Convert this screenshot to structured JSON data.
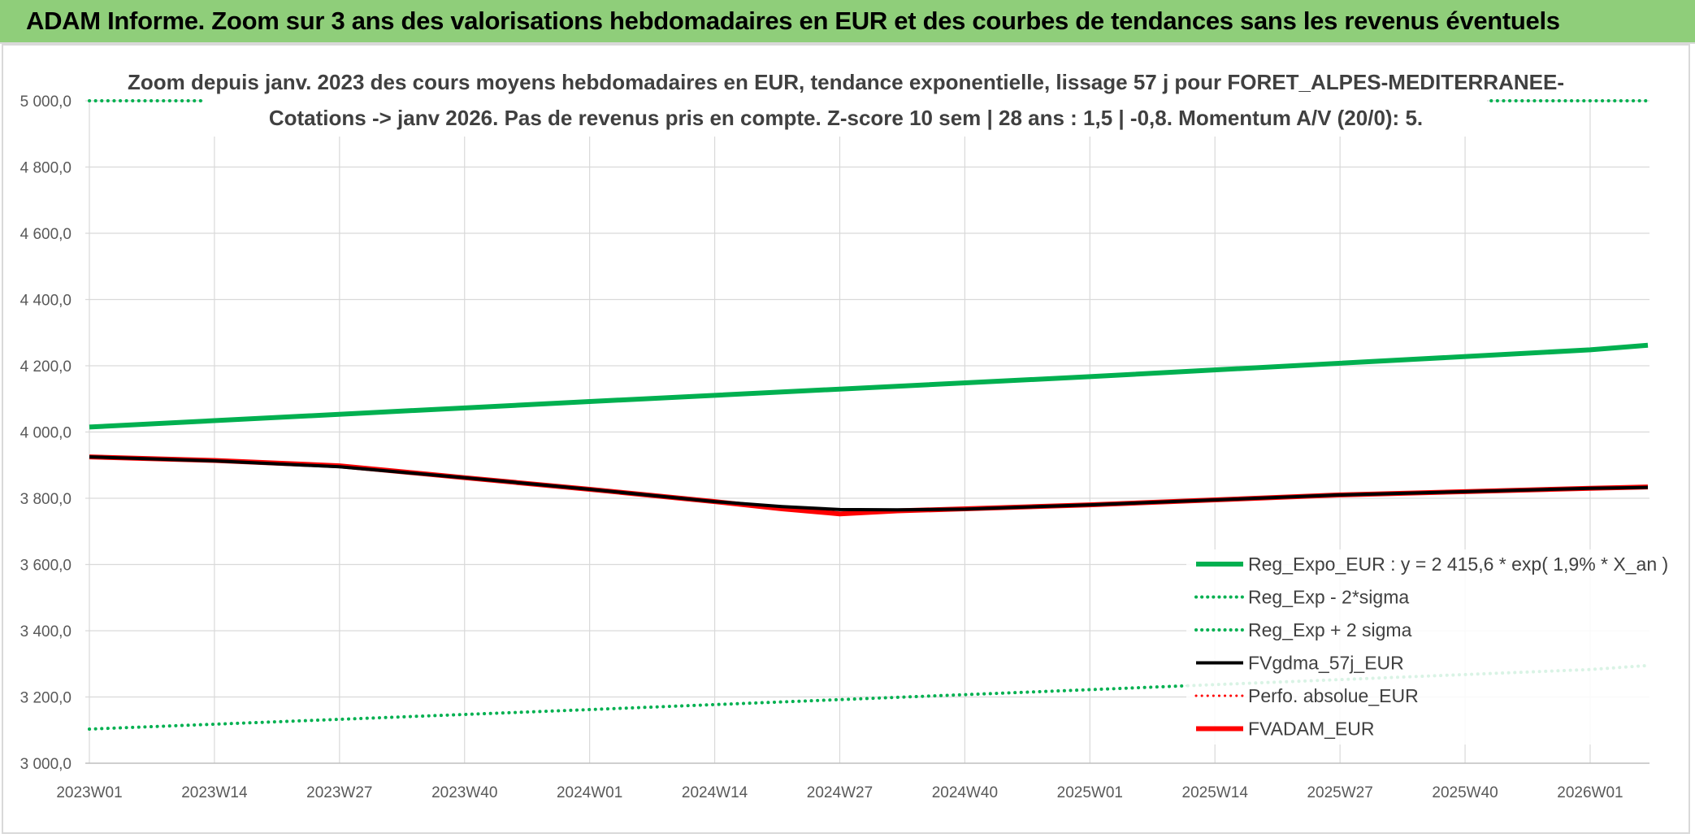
{
  "banner": {
    "text": "ADAM Informe. Zoom sur 3 ans des valorisations hebdomadaires en EUR et des courbes de tendances sans les revenus éventuels"
  },
  "chart_data": {
    "type": "line",
    "title_lines": [
      "Zoom depuis janv. 2023 des cours moyens hebdomadaires en EUR, tendance exponentielle, lissage 57 j pour FORET_ALPES-MEDITERRANEE-",
      "Cotations -> janv 2026. Pas de revenus pris en compte. Z-score 10 sem | 28 ans : 1,5 | -0,8. Momentum A/V (20/0): 5."
    ],
    "x_ticks": [
      "2023W01",
      "2023W14",
      "2023W27",
      "2023W40",
      "2024W01",
      "2024W14",
      "2024W27",
      "2024W40",
      "2025W01",
      "2025W14",
      "2025W27",
      "2025W40",
      "2026W01"
    ],
    "y_ticks": [
      "3 000,0",
      "3 200,0",
      "3 400,0",
      "3 600,0",
      "3 800,0",
      "4 000,0",
      "4 200,0",
      "4 400,0",
      "4 600,0",
      "4 800,0",
      "5 000,0"
    ],
    "ylim": [
      3000,
      5000
    ],
    "x_range_index": [
      0,
      162
    ],
    "grid": true,
    "legend_position": "bottom-right",
    "series": [
      {
        "name": "Reg_Expo_EUR : y = 2 415,6 * exp( 1,9% *  X_an )",
        "color": "#00b050",
        "style": "solid",
        "width": 6,
        "points": [
          [
            0,
            4015
          ],
          [
            52,
            4092
          ],
          [
            104,
            4167
          ],
          [
            156,
            4248
          ],
          [
            162,
            4262
          ]
        ]
      },
      {
        "name": "Reg_Exp - 2*sigma",
        "color": "#00b050",
        "style": "dotted",
        "width": 4,
        "points": [
          [
            0,
            3103
          ],
          [
            52,
            3162
          ],
          [
            104,
            3222
          ],
          [
            156,
            3283
          ],
          [
            162,
            3295
          ]
        ]
      },
      {
        "name": "Reg_Exp + 2 sigma",
        "color": "#00b050",
        "style": "dotted",
        "width": 4,
        "points": [
          [
            0,
            5000
          ],
          [
            162,
            5000
          ]
        ]
      },
      {
        "name": "FVgdma_57j_EUR",
        "color": "#000000",
        "style": "solid",
        "width": 4,
        "points": [
          [
            0,
            3925
          ],
          [
            13,
            3913
          ],
          [
            26,
            3895
          ],
          [
            39,
            3862
          ],
          [
            52,
            3827
          ],
          [
            65,
            3790
          ],
          [
            72,
            3775
          ],
          [
            78,
            3766
          ],
          [
            84,
            3765
          ],
          [
            91,
            3767
          ],
          [
            104,
            3780
          ],
          [
            117,
            3795
          ],
          [
            130,
            3810
          ],
          [
            143,
            3820
          ],
          [
            156,
            3830
          ],
          [
            162,
            3833
          ]
        ]
      },
      {
        "name": "Perfo. absolue_EUR",
        "color": "#ff0000",
        "style": "dotted",
        "width": 3,
        "points": []
      },
      {
        "name": "FVADAM_EUR",
        "color": "#ff0000",
        "style": "solid",
        "width": 6,
        "points": [
          [
            0,
            3925
          ],
          [
            13,
            3914
          ],
          [
            26,
            3898
          ],
          [
            39,
            3862
          ],
          [
            52,
            3827
          ],
          [
            65,
            3790
          ],
          [
            72,
            3768
          ],
          [
            78,
            3753
          ],
          [
            84,
            3762
          ],
          [
            91,
            3768
          ],
          [
            104,
            3780
          ],
          [
            117,
            3795
          ],
          [
            130,
            3810
          ],
          [
            143,
            3820
          ],
          [
            156,
            3830
          ],
          [
            162,
            3834
          ]
        ]
      }
    ]
  }
}
